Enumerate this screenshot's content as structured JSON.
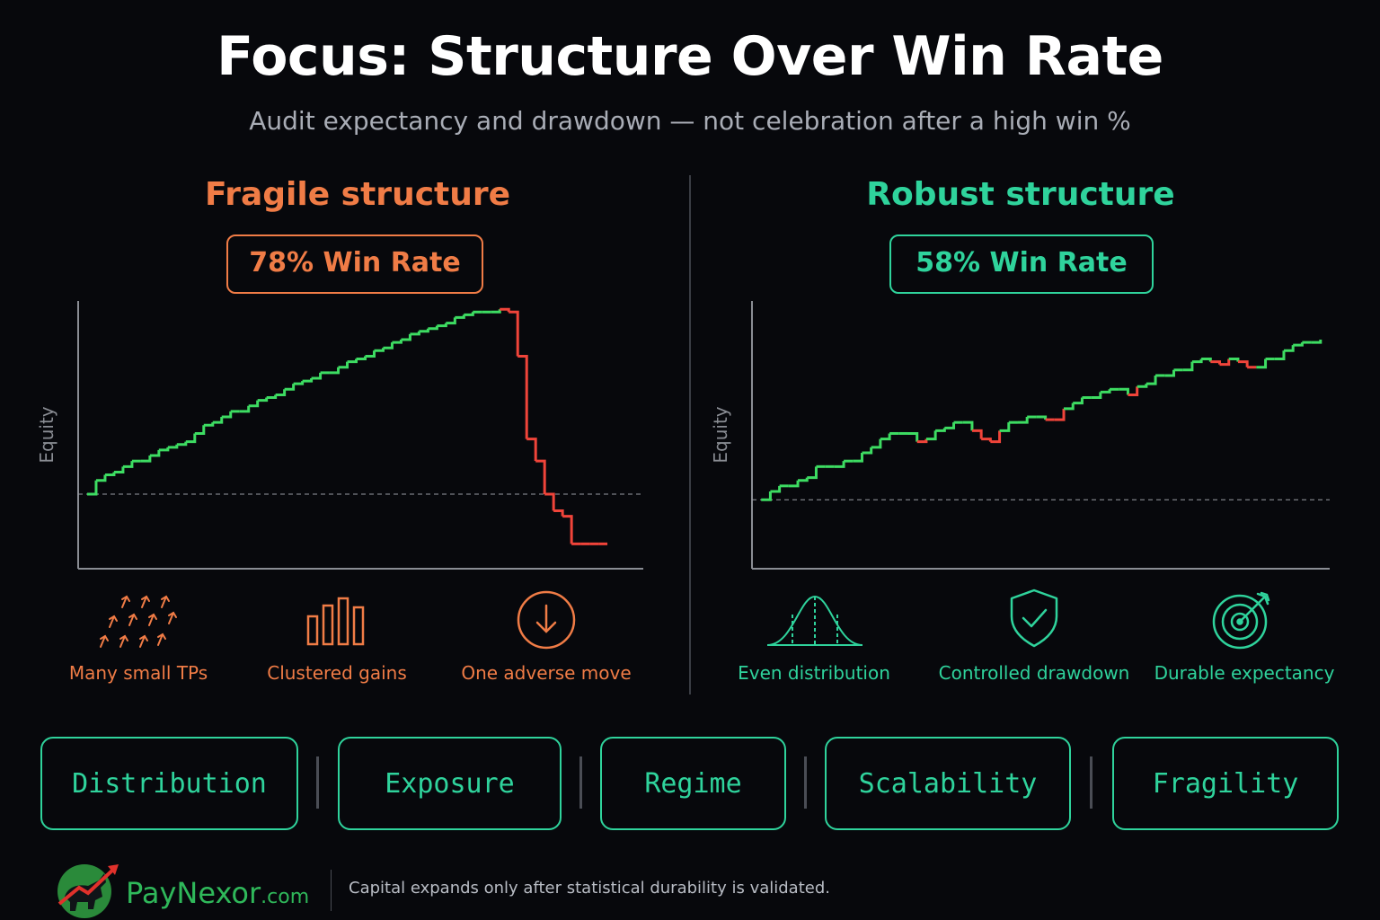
{
  "header": {
    "title": "Focus: Structure Over Win Rate",
    "subtitle": "Audit expectancy and drawdown — not celebration after a high win %"
  },
  "colors": {
    "fragile": "#f07c46",
    "robust": "#2fd39c",
    "win_step": "#3ddc62",
    "loss_step": "#f0443a",
    "axis": "#8a8d94"
  },
  "fragile": {
    "title": "Fragile structure",
    "badge": "78% Win Rate",
    "features": [
      {
        "icon": "arrows-up-icon",
        "label": "Many small TPs"
      },
      {
        "icon": "bar-cluster-icon",
        "label": "Clustered gains"
      },
      {
        "icon": "down-arrow-circle-icon",
        "label": "One adverse move"
      }
    ]
  },
  "robust": {
    "title": "Robust structure",
    "badge": "58% Win Rate",
    "features": [
      {
        "icon": "bell-curve-icon",
        "label": "Even distribution"
      },
      {
        "icon": "shield-check-icon",
        "label": "Controlled drawdown"
      },
      {
        "icon": "target-icon",
        "label": "Durable expectancy"
      }
    ]
  },
  "chart_data": [
    {
      "type": "line",
      "ylabel": "Equity",
      "baseline": 0,
      "ylim": [
        -27,
        70
      ],
      "xlim": [
        -1,
        62
      ],
      "x": [
        0,
        1,
        2,
        3,
        4,
        5,
        6,
        7,
        8,
        9,
        10,
        11,
        12,
        13,
        14,
        15,
        16,
        17,
        18,
        19,
        20,
        21,
        22,
        23,
        24,
        25,
        26,
        27,
        28,
        29,
        30,
        31,
        32,
        33,
        34,
        35,
        36,
        37,
        38,
        39,
        40,
        41,
        42,
        43,
        44,
        45,
        46,
        47,
        48,
        49,
        50,
        51,
        52,
        53,
        54,
        55,
        56,
        57,
        58
      ],
      "values": [
        0,
        5,
        7,
        8,
        10,
        12,
        12,
        14,
        16,
        17,
        18,
        19,
        22,
        25,
        26,
        28,
        30,
        30,
        32,
        34,
        35,
        36,
        38,
        40,
        41,
        42,
        44,
        44,
        46,
        48,
        49,
        50,
        52,
        53,
        55,
        56,
        58,
        59,
        60,
        61,
        62,
        64,
        65,
        66,
        66,
        66,
        67,
        66,
        50,
        20,
        12,
        0,
        -6,
        -8,
        -18,
        -18,
        -18,
        -18,
        -18
      ],
      "loss_from_index": 46
    },
    {
      "type": "line",
      "ylabel": "Equity",
      "baseline": 0,
      "ylim": [
        -25,
        72
      ],
      "xlim": [
        -1,
        62
      ],
      "x": [
        0,
        1,
        2,
        3,
        4,
        5,
        6,
        7,
        8,
        9,
        10,
        11,
        12,
        13,
        14,
        15,
        16,
        17,
        18,
        19,
        20,
        21,
        22,
        23,
        24,
        25,
        26,
        27,
        28,
        29,
        30,
        31,
        32,
        33,
        34,
        35,
        36,
        37,
        38,
        39,
        40,
        41,
        42,
        43,
        44,
        45,
        46,
        47,
        48,
        49,
        50,
        51,
        52,
        53,
        54,
        55,
        56,
        57,
        58,
        59,
        60,
        61
      ],
      "values": [
        0,
        3,
        5,
        5,
        7,
        8,
        12,
        12,
        12,
        14,
        14,
        17,
        19,
        22,
        24,
        24,
        24,
        21,
        22,
        25,
        26,
        28,
        28,
        25,
        22,
        21,
        25,
        28,
        28,
        30,
        30,
        29,
        29,
        33,
        35,
        37,
        37,
        39,
        40,
        40,
        38,
        41,
        42,
        45,
        45,
        47,
        47,
        50,
        51,
        50,
        49,
        51,
        50,
        48,
        48,
        51,
        51,
        54,
        56,
        57,
        57,
        58
      ],
      "loss_indices": [
        17,
        23,
        24,
        25,
        31,
        32,
        40,
        49,
        50,
        52,
        53
      ]
    }
  ],
  "pillars": [
    "Distribution",
    "Exposure",
    "Regime",
    "Scalability",
    "Fragility"
  ],
  "footer": {
    "brand": "PayNexor",
    "brand_suffix": ".com",
    "tagline": "Capital expands only after statistical durability is validated."
  }
}
